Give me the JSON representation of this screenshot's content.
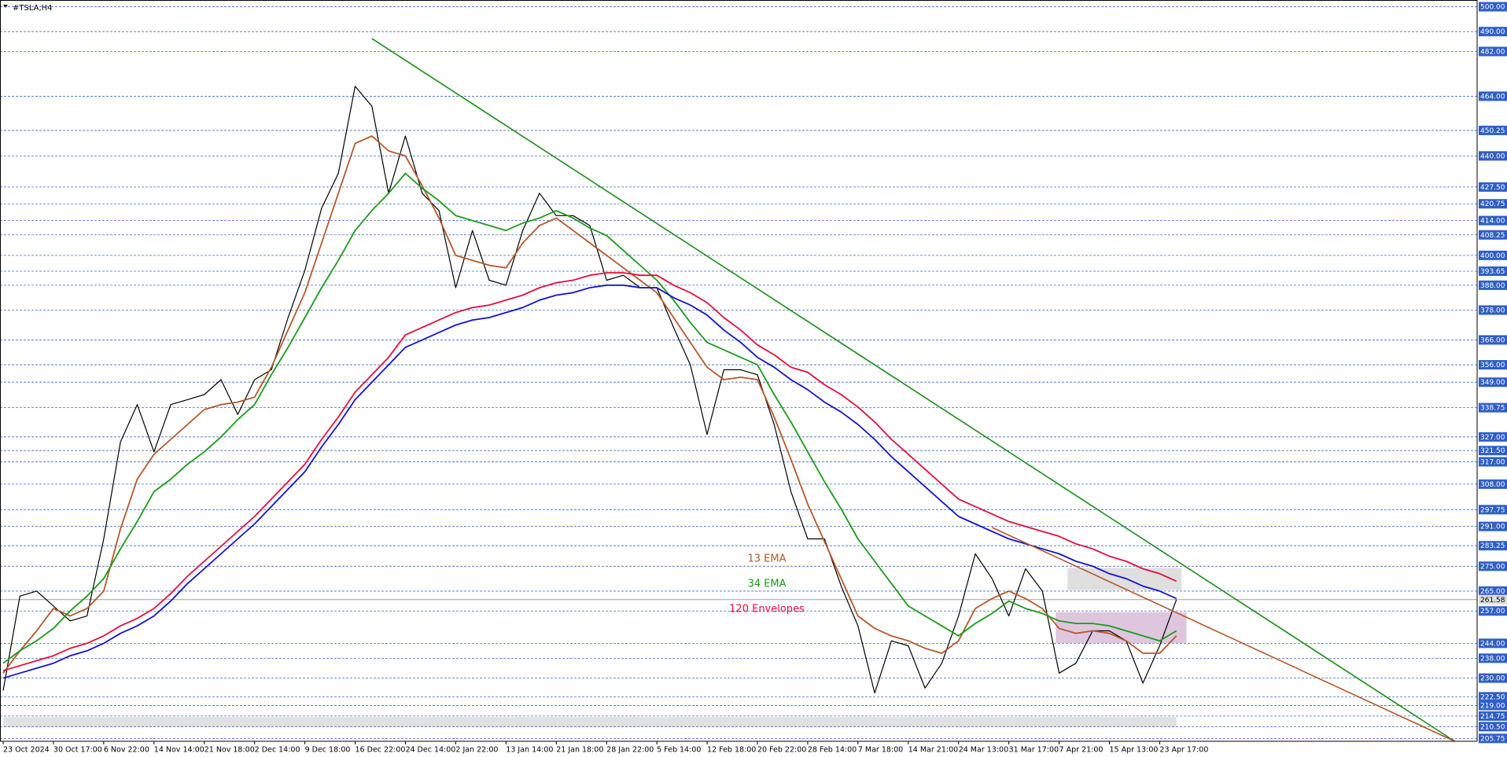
{
  "chart_data": {
    "type": "line",
    "title": "#TSLA,H4",
    "categories": [
      "23 Oct 2024",
      null,
      null,
      "30 Oct 17:00",
      null,
      null,
      "6 Nov 22:00",
      null,
      null,
      "14 Nov 14:00",
      null,
      null,
      "21 Nov 18:00",
      null,
      null,
      "2 Dec 14:00",
      null,
      null,
      "9 Dec 18:00",
      null,
      null,
      "16 Dec 22:00",
      null,
      null,
      "24 Dec 14:00",
      null,
      null,
      "2 Jan 22:00",
      null,
      null,
      "13 Jan 14:00",
      null,
      null,
      "21 Jan 18:00",
      null,
      null,
      "28 Jan 22:00",
      null,
      null,
      "5 Feb 14:00",
      null,
      null,
      "12 Feb 18:00",
      null,
      null,
      "20 Feb 22:00",
      null,
      null,
      "28 Feb 14:00",
      null,
      null,
      "7 Mar 18:00",
      null,
      null,
      "14 Mar 21:00",
      null,
      null,
      "24 Mar 13:00",
      null,
      null,
      "31 Mar 17:00",
      null,
      null,
      "7 Apr 21:00",
      null,
      null,
      "15 Apr 13:00",
      null,
      null,
      "23 Apr 17:00",
      null,
      null,
      null,
      null,
      null,
      null,
      null,
      null,
      null,
      null,
      null,
      null,
      null,
      null,
      null,
      null,
      null,
      null
    ],
    "series": [
      {
        "color": "#000000",
        "values": [
          225,
          263,
          265,
          259,
          253,
          255,
          286,
          325,
          340,
          321,
          340,
          342,
          344,
          350,
          336,
          350,
          354,
          375,
          394,
          419,
          433,
          468,
          460,
          425,
          448,
          425,
          418,
          387,
          410,
          390,
          388,
          410,
          425,
          416,
          416,
          412,
          390,
          392,
          387,
          387,
          371,
          356,
          328,
          354,
          354,
          352,
          332,
          305,
          286,
          286,
          267,
          251,
          224,
          245,
          243,
          226,
          236,
          255,
          280,
          270,
          255,
          274,
          265,
          232,
          236,
          249,
          249,
          245,
          228,
          243,
          261.58,
          null,
          null,
          null,
          null,
          null,
          null,
          null,
          null,
          null,
          null,
          null,
          null,
          null,
          null,
          null,
          null,
          null
        ]
      },
      {
        "name": "13 EMA",
        "color": "#b4582c",
        "values": [
          232,
          241,
          249,
          258,
          255,
          258,
          265,
          290,
          310,
          320,
          326,
          332,
          338,
          340,
          341,
          343,
          355,
          370,
          385,
          405,
          425,
          445,
          448,
          442,
          440,
          428,
          415,
          400,
          398,
          396,
          395,
          405,
          412,
          415,
          410,
          405,
          400,
          395,
          390,
          385,
          375,
          365,
          355,
          350,
          351,
          350,
          335,
          318,
          300,
          285,
          270,
          255,
          250,
          247,
          245,
          242,
          240,
          245,
          258,
          262,
          265,
          262,
          258,
          250,
          248,
          249,
          248,
          245,
          240,
          240,
          247,
          null,
          null,
          null,
          null,
          null,
          null,
          null,
          null,
          null,
          null,
          null,
          null,
          null,
          null,
          null,
          null,
          null
        ]
      },
      {
        "name": "34 EMA",
        "color": "#1c9a1c",
        "values": [
          236,
          241,
          245,
          250,
          257,
          263,
          270,
          282,
          293,
          305,
          310,
          316,
          321,
          327,
          334,
          340,
          352,
          363,
          375,
          387,
          398,
          410,
          418,
          425,
          433,
          427,
          422,
          416,
          414,
          412,
          410,
          413,
          415,
          418,
          415,
          411,
          408,
          402,
          396,
          390,
          382,
          373,
          365,
          362,
          359,
          356,
          344,
          333,
          321,
          309,
          298,
          286,
          277,
          268,
          259,
          255,
          251,
          247,
          252,
          256,
          261,
          258,
          256,
          253,
          252,
          252,
          251,
          249,
          247,
          245,
          249,
          null,
          null,
          null,
          null,
          null,
          null,
          null,
          null,
          null,
          null,
          null,
          null,
          null,
          null,
          null,
          null,
          null
        ]
      },
      {
        "name": "120 Envelopes",
        "color": "#e0103c",
        "values": [
          233,
          235,
          237,
          239,
          242,
          244,
          247,
          251,
          254,
          258,
          264,
          271,
          277,
          283,
          289,
          295,
          302,
          309,
          316,
          326,
          335,
          345,
          352,
          359,
          368,
          371,
          374,
          377,
          379,
          380,
          382,
          384,
          387,
          389,
          390,
          392,
          393,
          393,
          392,
          392,
          388,
          385,
          381,
          375,
          370,
          364,
          360,
          355,
          353,
          348,
          344,
          339,
          333,
          326,
          320,
          314,
          308,
          302,
          299,
          296,
          293,
          291,
          289,
          287,
          284,
          282,
          279,
          277,
          274,
          272,
          269,
          null,
          null,
          null,
          null,
          null,
          null,
          null,
          null,
          null,
          null,
          null,
          null,
          null,
          null,
          null,
          null,
          null
        ],
        "lower_color": "#1414c8",
        "lower": [
          230,
          232,
          234,
          236,
          239,
          241,
          244,
          248,
          251,
          255,
          261,
          268,
          274,
          280,
          286,
          292,
          299,
          306,
          313,
          323,
          332,
          342,
          349,
          356,
          363,
          366,
          369,
          372,
          374,
          375,
          377,
          379,
          382,
          384,
          385,
          387,
          388,
          388,
          387,
          387,
          383,
          380,
          376,
          370,
          365,
          359,
          355,
          350,
          346,
          341,
          337,
          332,
          326,
          319,
          313,
          307,
          301,
          295,
          292,
          289,
          286,
          284,
          282,
          280,
          277,
          275,
          272,
          270,
          267,
          265,
          262,
          null,
          null,
          null,
          null,
          null,
          null,
          null,
          null,
          null,
          null,
          null,
          null,
          null,
          null,
          null,
          null,
          null
        ]
      }
    ],
    "ylim": [
      204.6,
      502.7
    ],
    "yticks": [
      {
        "value": 500,
        "label": "500.00"
      },
      {
        "value": 490,
        "label": "490.00"
      },
      {
        "value": 482,
        "label": "482.00"
      },
      {
        "value": 464,
        "label": "464.00"
      },
      {
        "value": 450.25,
        "label": "450.25"
      },
      {
        "value": 440,
        "label": "440.00"
      },
      {
        "value": 427.5,
        "label": "427.50"
      },
      {
        "value": 420.75,
        "label": "420.75"
      },
      {
        "value": 414,
        "label": "414.00"
      },
      {
        "value": 408.25,
        "label": "408.25"
      },
      {
        "value": 400,
        "label": "400.00"
      },
      {
        "value": 393.65,
        "label": "393.65"
      },
      {
        "value": 388,
        "label": "388.00"
      },
      {
        "value": 378,
        "label": "378.00"
      },
      {
        "value": 366,
        "label": "366.00"
      },
      {
        "value": 356,
        "label": "356.00"
      },
      {
        "value": 349,
        "label": "349.00"
      },
      {
        "value": 338.75,
        "label": "338.75"
      },
      {
        "value": 327,
        "label": "327.00"
      },
      {
        "value": 321.5,
        "label": "321.50"
      },
      {
        "value": 317,
        "label": "317.00"
      },
      {
        "value": 308,
        "label": "308.00"
      },
      {
        "value": 297.75,
        "label": "297.75"
      },
      {
        "value": 291,
        "label": "291.00"
      },
      {
        "value": 283.25,
        "label": "283.25"
      },
      {
        "value": 275,
        "label": "275.00"
      },
      {
        "value": 265,
        "label": "265.00"
      },
      {
        "value": 257,
        "label": "257.00"
      },
      {
        "value": 244,
        "label": "244.00"
      },
      {
        "value": 238,
        "label": "238.00"
      },
      {
        "value": 230,
        "label": "230.00"
      },
      {
        "value": 222.5,
        "label": "222.50"
      },
      {
        "value": 219,
        "label": "219.00"
      },
      {
        "value": 214.75,
        "label": "214.75"
      },
      {
        "value": 210.5,
        "label": "210.50"
      },
      {
        "value": 205.75,
        "label": "205.75"
      }
    ],
    "grid": true,
    "current_price": 261.58,
    "trendlines": [
      {
        "color": "#1c8c1c",
        "points": [
          [
            22,
            487.2
          ],
          [
            86.6,
            204.6
          ]
        ]
      },
      {
        "color": "#b4582c",
        "points": [
          [
            59,
            290.6
          ],
          [
            86.6,
            204.6
          ]
        ]
      }
    ],
    "zones": [
      {
        "color": "#d9d9d9",
        "x": [
          63.5,
          70.3
        ],
        "y": [
          265.4,
          274.3
        ]
      },
      {
        "color": "#d8bcd8",
        "x": [
          62.8,
          70.6
        ],
        "y": [
          244.1,
          256.5
        ]
      },
      {
        "color": "#dcdcdc",
        "x": [
          0,
          70
        ],
        "y": [
          210.4,
          214.3
        ]
      }
    ]
  }
}
